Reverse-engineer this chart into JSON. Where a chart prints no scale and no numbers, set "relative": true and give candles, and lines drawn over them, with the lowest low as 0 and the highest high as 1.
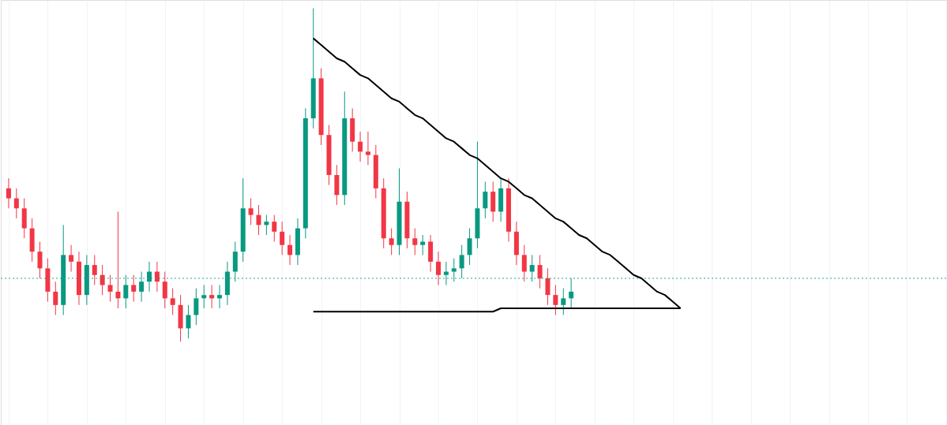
{
  "chart_data": {
    "type": "candlestick",
    "relative": true,
    "grid": true,
    "tick_labels": false,
    "colors": [
      "#f23645",
      "#f23645",
      "#f23645",
      "#f23645",
      "#f23645",
      "#f23645",
      "#f23645",
      "#089981",
      "#f23645",
      "#f23645",
      "#089981",
      "#f23645",
      "#f23645",
      "#f23645",
      "#f23645",
      "#089981",
      "#f23645",
      "#089981",
      "#089981",
      "#f23645",
      "#f23645",
      "#f23645",
      "#f23645",
      "#089981",
      "#089981",
      "#089981",
      "#f23645",
      "#089981",
      "#089981",
      "#089981",
      "#089981",
      "#f23645",
      "#f23645",
      "#089981",
      "#f23645",
      "#f23645",
      "#f23645",
      "#089981",
      "#089981",
      "#089981",
      "#f23645",
      "#f23645",
      "#f23645",
      "#089981",
      "#f23645",
      "#f23645",
      "#f23645",
      "#f23645",
      "#f23645",
      "#f23645",
      "#089981",
      "#f23645",
      "#f23645",
      "#089981",
      "#f23645",
      "#f23645",
      "#089981",
      "#089981",
      "#089981",
      "#089981",
      "#089981",
      "#089981",
      "#f23645",
      "#089981",
      "#f23645",
      "#f23645",
      "#f23645",
      "#089981",
      "#f23645",
      "#f23645",
      "#f23645",
      "#089981",
      "#089981",
      null,
      null,
      null,
      null,
      null,
      null,
      null,
      null,
      null,
      null,
      null,
      null,
      null,
      null,
      null,
      null,
      null,
      null,
      null,
      null,
      null,
      null,
      null,
      null,
      null,
      null,
      null,
      null,
      null,
      null,
      null,
      null,
      null,
      null,
      null,
      null,
      null,
      null,
      null,
      null,
      null,
      null,
      null,
      null,
      null,
      null,
      null
    ],
    "categories": [
      null,
      null,
      null,
      null,
      null,
      null,
      null,
      null,
      null,
      null,
      null,
      null,
      null,
      null,
      null,
      null,
      null,
      null,
      null,
      null,
      null,
      null,
      null,
      null,
      null,
      null,
      null,
      null,
      null,
      null,
      null,
      null,
      null,
      null,
      null,
      null,
      null,
      null,
      null,
      null,
      null,
      null,
      null,
      null,
      null,
      null,
      null,
      null,
      null,
      null,
      null,
      null,
      null,
      null,
      null,
      null,
      null,
      null,
      null,
      null,
      null,
      null,
      null,
      null,
      null,
      null,
      null,
      null,
      null,
      null,
      null,
      null,
      null,
      null,
      null,
      null,
      null,
      null,
      null,
      null,
      null,
      null,
      null,
      null,
      null,
      null,
      null,
      null,
      null,
      null,
      null,
      null,
      null,
      null,
      null,
      null,
      null,
      null,
      null,
      null,
      null,
      null,
      null,
      null,
      null,
      null,
      null,
      null,
      null,
      null,
      null,
      null,
      null,
      null,
      null,
      null,
      null,
      null,
      null,
      null
    ],
    "ohlc": [
      [
        0.46,
        0.49,
        0.4,
        0.43
      ],
      [
        0.43,
        0.46,
        0.37,
        0.4
      ],
      [
        0.4,
        0.43,
        0.31,
        0.34
      ],
      [
        0.34,
        0.37,
        0.24,
        0.27
      ],
      [
        0.27,
        0.3,
        0.19,
        0.22
      ],
      [
        0.22,
        0.25,
        0.12,
        0.15
      ],
      [
        0.15,
        0.18,
        0.08,
        0.11
      ],
      [
        0.11,
        0.35,
        0.08,
        0.26
      ],
      [
        0.26,
        0.29,
        0.21,
        0.24
      ],
      [
        0.24,
        0.27,
        0.11,
        0.14
      ],
      [
        0.14,
        0.26,
        0.11,
        0.23
      ],
      [
        0.23,
        0.26,
        0.17,
        0.2
      ],
      [
        0.2,
        0.23,
        0.14,
        0.17
      ],
      [
        0.17,
        0.2,
        0.12,
        0.15
      ],
      [
        0.15,
        0.39,
        0.1,
        0.13
      ],
      [
        0.13,
        0.2,
        0.1,
        0.17
      ],
      [
        0.17,
        0.2,
        0.12,
        0.15
      ],
      [
        0.15,
        0.21,
        0.12,
        0.18
      ],
      [
        0.18,
        0.24,
        0.15,
        0.21
      ],
      [
        0.21,
        0.24,
        0.15,
        0.18
      ],
      [
        0.18,
        0.21,
        0.1,
        0.13
      ],
      [
        0.13,
        0.16,
        0.08,
        0.11
      ],
      [
        0.11,
        0.14,
        0.0,
        0.04
      ],
      [
        0.04,
        0.11,
        0.01,
        0.08
      ],
      [
        0.08,
        0.16,
        0.05,
        0.13
      ],
      [
        0.13,
        0.17,
        0.1,
        0.14
      ],
      [
        0.14,
        0.17,
        0.1,
        0.13
      ],
      [
        0.13,
        0.17,
        0.1,
        0.14
      ],
      [
        0.14,
        0.24,
        0.11,
        0.21
      ],
      [
        0.21,
        0.3,
        0.18,
        0.27
      ],
      [
        0.27,
        0.49,
        0.24,
        0.4
      ],
      [
        0.4,
        0.43,
        0.35,
        0.38
      ],
      [
        0.38,
        0.41,
        0.32,
        0.35
      ],
      [
        0.35,
        0.38,
        0.32,
        0.36
      ],
      [
        0.36,
        0.38,
        0.3,
        0.33
      ],
      [
        0.33,
        0.36,
        0.26,
        0.29
      ],
      [
        0.29,
        0.32,
        0.23,
        0.26
      ],
      [
        0.26,
        0.37,
        0.23,
        0.34
      ],
      [
        0.34,
        0.7,
        0.31,
        0.67
      ],
      [
        0.67,
        1.0,
        0.64,
        0.79
      ],
      [
        0.79,
        0.82,
        0.59,
        0.62
      ],
      [
        0.62,
        0.65,
        0.47,
        0.5
      ],
      [
        0.5,
        0.53,
        0.41,
        0.44
      ],
      [
        0.44,
        0.75,
        0.41,
        0.67
      ],
      [
        0.67,
        0.7,
        0.57,
        0.6
      ],
      [
        0.6,
        0.63,
        0.54,
        0.57
      ],
      [
        0.57,
        0.63,
        0.53,
        0.56
      ],
      [
        0.56,
        0.59,
        0.43,
        0.46
      ],
      [
        0.46,
        0.49,
        0.28,
        0.31
      ],
      [
        0.31,
        0.34,
        0.26,
        0.29
      ],
      [
        0.29,
        0.52,
        0.26,
        0.42
      ],
      [
        0.42,
        0.45,
        0.28,
        0.31
      ],
      [
        0.31,
        0.34,
        0.26,
        0.29
      ],
      [
        0.29,
        0.32,
        0.26,
        0.3
      ],
      [
        0.3,
        0.32,
        0.21,
        0.24
      ],
      [
        0.24,
        0.27,
        0.17,
        0.2
      ],
      [
        0.2,
        0.24,
        0.17,
        0.21
      ],
      [
        0.21,
        0.25,
        0.18,
        0.22
      ],
      [
        0.22,
        0.29,
        0.19,
        0.26
      ],
      [
        0.26,
        0.34,
        0.23,
        0.31
      ],
      [
        0.31,
        0.6,
        0.28,
        0.4
      ],
      [
        0.4,
        0.48,
        0.37,
        0.45
      ],
      [
        0.45,
        0.48,
        0.36,
        0.39
      ],
      [
        0.39,
        0.49,
        0.36,
        0.46
      ],
      [
        0.46,
        0.49,
        0.3,
        0.33
      ],
      [
        0.33,
        0.36,
        0.23,
        0.26
      ],
      [
        0.26,
        0.29,
        0.18,
        0.21
      ],
      [
        0.21,
        0.26,
        0.18,
        0.23
      ],
      [
        0.23,
        0.26,
        0.16,
        0.19
      ],
      [
        0.19,
        0.22,
        0.11,
        0.14
      ],
      [
        0.14,
        0.17,
        0.08,
        0.11
      ],
      [
        0.11,
        0.16,
        0.08,
        0.13
      ],
      [
        0.13,
        0.19,
        0.1,
        0.15
      ],
      null,
      null,
      null,
      null,
      null,
      null,
      null,
      null,
      null,
      null,
      null,
      null,
      null,
      null,
      null,
      null,
      null,
      null,
      null,
      null,
      null,
      null,
      null,
      null,
      null,
      null,
      null,
      null,
      null,
      null,
      null,
      null,
      null,
      null,
      null,
      null,
      null,
      null,
      null,
      null,
      null,
      null,
      null,
      null,
      null,
      null,
      null
    ],
    "series": [
      {
        "type": "line",
        "color": "#000000",
        "values": [
          null,
          null,
          null,
          null,
          null,
          null,
          null,
          null,
          null,
          null,
          null,
          null,
          null,
          null,
          null,
          null,
          null,
          null,
          null,
          null,
          null,
          null,
          null,
          null,
          null,
          null,
          null,
          null,
          null,
          null,
          null,
          null,
          null,
          null,
          null,
          null,
          null,
          null,
          null,
          0.91,
          0.89,
          0.87,
          0.85,
          0.84,
          0.82,
          0.8,
          0.79,
          0.77,
          0.75,
          0.73,
          0.72,
          0.7,
          0.68,
          0.67,
          0.65,
          0.63,
          0.61,
          0.6,
          0.58,
          0.56,
          0.55,
          0.53,
          0.51,
          0.49,
          0.48,
          0.46,
          0.44,
          0.43,
          0.41,
          0.39,
          0.37,
          0.36,
          0.34,
          0.32,
          0.31,
          0.29,
          0.27,
          0.26,
          0.24,
          0.22,
          0.2,
          0.19,
          0.17,
          0.15,
          0.14,
          0.12,
          0.1,
          null,
          null,
          null,
          null,
          null,
          null,
          null,
          null,
          null,
          null,
          null,
          null,
          null,
          null,
          null,
          null,
          null,
          null,
          null,
          null,
          null,
          null,
          null,
          null,
          null,
          null,
          null,
          null,
          null,
          null,
          null,
          null,
          null
        ]
      },
      {
        "type": "line",
        "color": "#000000",
        "values": [
          null,
          null,
          null,
          null,
          null,
          null,
          null,
          null,
          null,
          null,
          null,
          null,
          null,
          null,
          null,
          null,
          null,
          null,
          null,
          null,
          null,
          null,
          null,
          null,
          null,
          null,
          null,
          null,
          null,
          null,
          null,
          null,
          null,
          null,
          null,
          null,
          null,
          null,
          null,
          0.09,
          0.09,
          0.09,
          0.09,
          0.09,
          0.09,
          0.09,
          0.09,
          0.09,
          0.09,
          0.09,
          0.09,
          0.09,
          0.09,
          0.09,
          0.09,
          0.09,
          0.09,
          0.09,
          0.09,
          0.09,
          0.09,
          0.09,
          0.09,
          0.1,
          0.1,
          0.1,
          0.1,
          0.1,
          0.1,
          0.1,
          0.1,
          0.1,
          0.1,
          0.1,
          0.1,
          0.1,
          0.1,
          0.1,
          0.1,
          0.1,
          0.1,
          0.1,
          0.1,
          0.1,
          0.1,
          0.1,
          0.1,
          null,
          null,
          null,
          null,
          null,
          null,
          null,
          null,
          null,
          null,
          null,
          null,
          null,
          null,
          null,
          null,
          null,
          null,
          null,
          null,
          null,
          null,
          null,
          null,
          null,
          null,
          null,
          null,
          null,
          null,
          null,
          null,
          null
        ]
      }
    ],
    "ref_lines": [
      {
        "axis": "y",
        "value": 0.19,
        "color": "#26a69a",
        "line_style": "dotted"
      }
    ]
  }
}
